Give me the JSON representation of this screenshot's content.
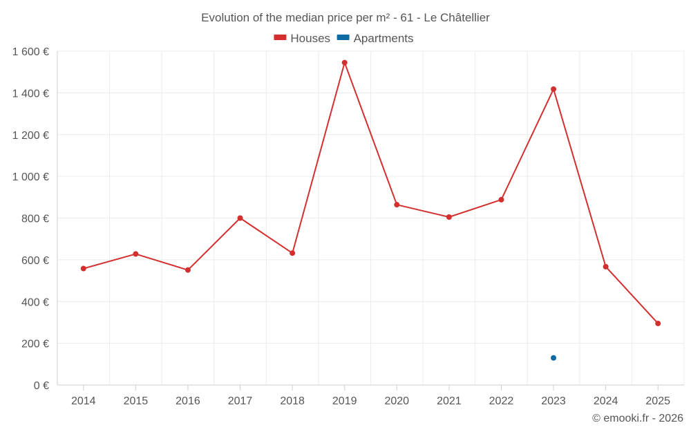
{
  "chart_data": {
    "type": "line",
    "title": "Evolution of the median price per m² - 61 - Le Châtellier",
    "categories": [
      "2014",
      "2015",
      "2016",
      "2017",
      "2018",
      "2019",
      "2020",
      "2021",
      "2022",
      "2023",
      "2024",
      "2025"
    ],
    "series": [
      {
        "name": "Houses",
        "color": "#d32f2f",
        "values": [
          558,
          628,
          551,
          800,
          632,
          1545,
          864,
          805,
          888,
          1418,
          567,
          295
        ]
      },
      {
        "name": "Apartments",
        "color": "#0d6aa3",
        "values": [
          null,
          null,
          null,
          null,
          null,
          null,
          null,
          null,
          null,
          130,
          null,
          null
        ]
      }
    ],
    "ylim": [
      0,
      1600
    ],
    "yticks": [
      0,
      200,
      400,
      600,
      800,
      1000,
      1200,
      1400,
      1600
    ],
    "ytick_labels": [
      "0 €",
      "200 €",
      "400 €",
      "600 €",
      "800 €",
      "1 000 €",
      "1 200 €",
      "1 400 €",
      "1 600 €"
    ],
    "xlabel": "",
    "ylabel": "",
    "grid": true,
    "legend_position": "top-center"
  },
  "credit": "© emooki.fr - 2026"
}
